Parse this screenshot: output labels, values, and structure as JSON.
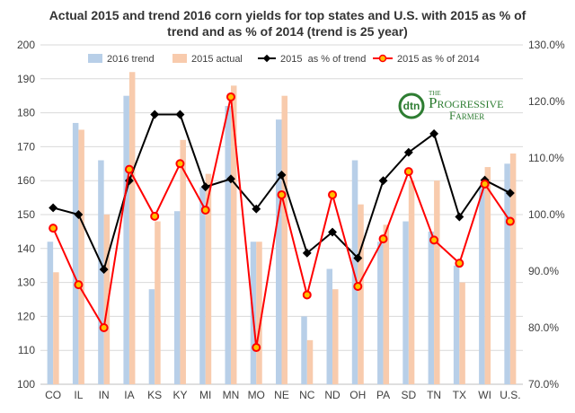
{
  "chart_data": {
    "type": "bar+line",
    "title_line1": "Actual 2015 and trend 2016 corn yields for top states and U.S. with 2015 as % of",
    "title_line2": "trend and as % of 2014 (trend is 25 year)",
    "categories": [
      "CO",
      "IL",
      "IN",
      "IA",
      "KS",
      "KY",
      "MI",
      "MN",
      "MO",
      "NE",
      "NC",
      "ND",
      "OH",
      "PA",
      "SD",
      "TN",
      "TX",
      "WI",
      "U.S."
    ],
    "ylim_left": [
      100,
      200
    ],
    "ylim_right": [
      70,
      130
    ],
    "left_ticks": [
      "100",
      "110",
      "120",
      "130",
      "140",
      "150",
      "160",
      "170",
      "180",
      "190",
      "200"
    ],
    "right_ticks": [
      "70.0%",
      "80.0%",
      "90.0%",
      "100.0%",
      "110.0%",
      "120.0%",
      "130.0%"
    ],
    "legend_position": "top",
    "grid": "horizontal",
    "series": [
      {
        "name": "2016 trend",
        "kind": "bar",
        "axis": "left",
        "color": "#b8cfe8",
        "values": [
          142,
          177,
          166,
          185,
          128,
          151,
          158,
          182,
          142,
          178,
          120,
          134,
          166,
          142,
          148,
          145,
          135,
          158,
          165
        ]
      },
      {
        "name": "2015 actual",
        "kind": "bar",
        "axis": "left",
        "color": "#f8cbad",
        "values": [
          133,
          175,
          150,
          192,
          148,
          172,
          162,
          188,
          142,
          185,
          113,
          128,
          153,
          147,
          160,
          160,
          130,
          164,
          168
        ]
      },
      {
        "name": "2015  as % of trend",
        "kind": "line",
        "axis": "right",
        "color": "#000000",
        "marker": "diamond",
        "values": [
          101.2,
          100.0,
          90.3,
          106.0,
          117.7,
          117.7,
          104.9,
          106.3,
          101.0,
          107.0,
          93.2,
          96.9,
          92.3,
          106.0,
          111.0,
          114.3,
          99.6,
          106.1,
          103.8
        ]
      },
      {
        "name": "2015 as % of 2014",
        "kind": "line",
        "axis": "right",
        "color": "#ff0000",
        "marker": "circle",
        "marker_fill": "#ffc000",
        "values": [
          97.6,
          87.6,
          80.0,
          108.0,
          99.7,
          109.0,
          100.8,
          120.8,
          76.5,
          103.5,
          85.8,
          103.5,
          87.3,
          95.7,
          107.6,
          95.5,
          91.4,
          105.4,
          98.8
        ]
      }
    ]
  },
  "logo": {
    "dtn": "dtn",
    "the": "THE",
    "line1": "Progressive",
    "line2": "Farmer"
  }
}
